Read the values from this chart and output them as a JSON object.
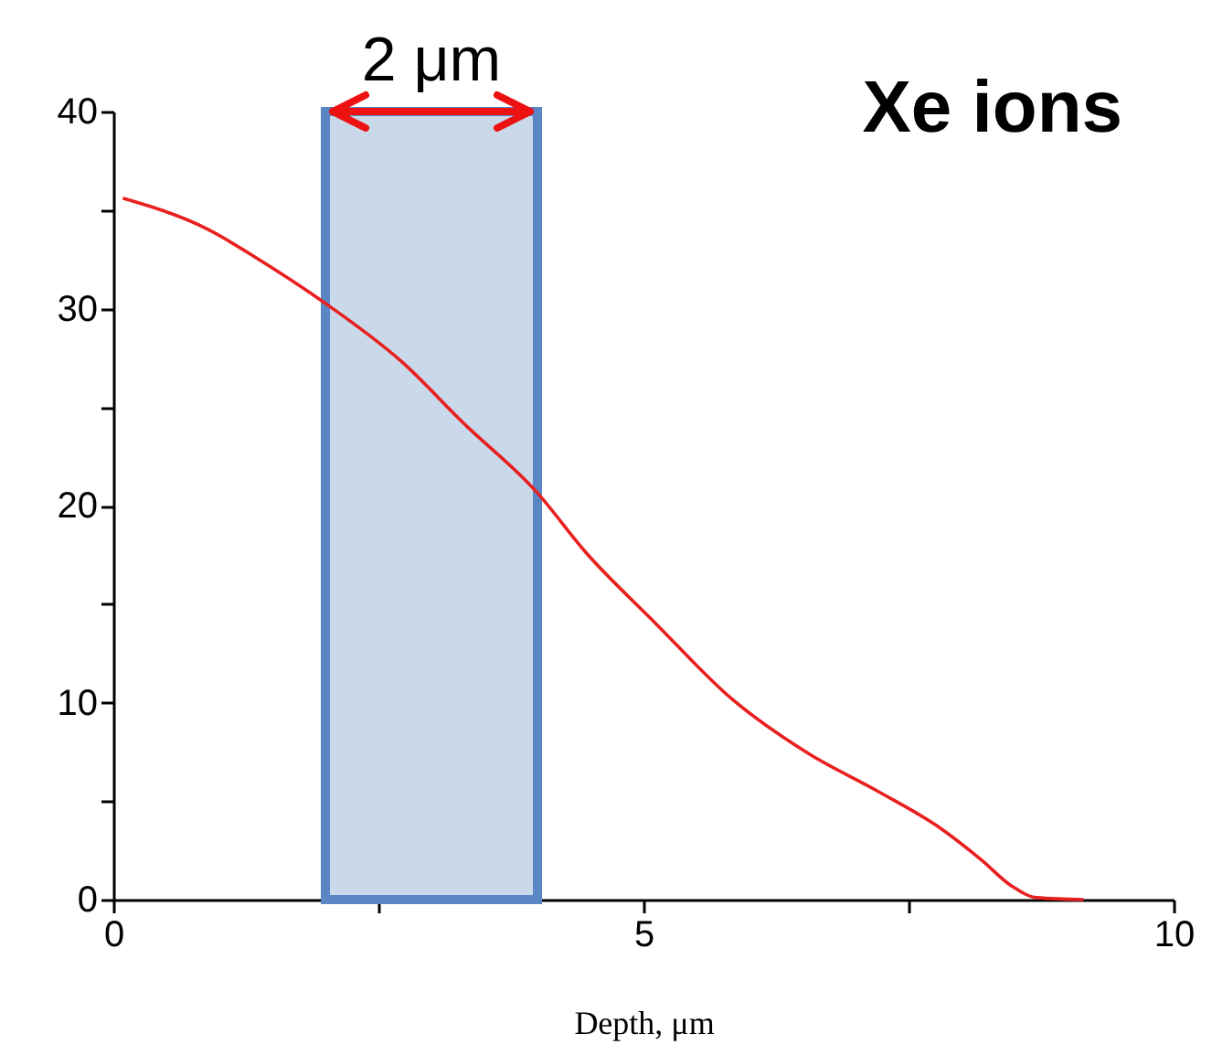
{
  "chart_data": {
    "type": "line",
    "xlabel": "Depth, μm",
    "x": [
      0.09,
      0.9,
      1.34,
      1.99,
      2.72,
      3.3,
      3.99,
      4.46,
      5.1,
      5.83,
      6.56,
      7.21,
      7.78,
      8.19,
      8.47,
      8.71,
      9.15
    ],
    "series": [
      {
        "color": "#e8201f",
        "values": [
          35.6,
          34.0,
          32.6,
          30.3,
          27.3,
          24.2,
          20.7,
          17.6,
          14.1,
          10.2,
          7.4,
          5.5,
          3.7,
          2.0,
          0.7,
          0.1,
          0
        ]
      }
    ],
    "xlim": [
      0,
      10
    ],
    "ylim": [
      0,
      40
    ],
    "xticks": [
      0,
      {
        "value": 2.5,
        "label": null
      },
      5,
      {
        "value": 7.5,
        "label": null
      },
      10
    ],
    "yticks": [
      0,
      {
        "value": 5,
        "label": null
      },
      10,
      {
        "value": 15,
        "label": null
      },
      20,
      {
        "value": 25,
        "label": null
      },
      30,
      {
        "value": 35,
        "label": null
      },
      40
    ],
    "bands": [
      {
        "axis": "x",
        "from": 2,
        "to": 4,
        "label": "2 μm",
        "color": "#c9d9ea"
      }
    ],
    "annotations": [
      "Xe ions"
    ],
    "grid": false
  }
}
